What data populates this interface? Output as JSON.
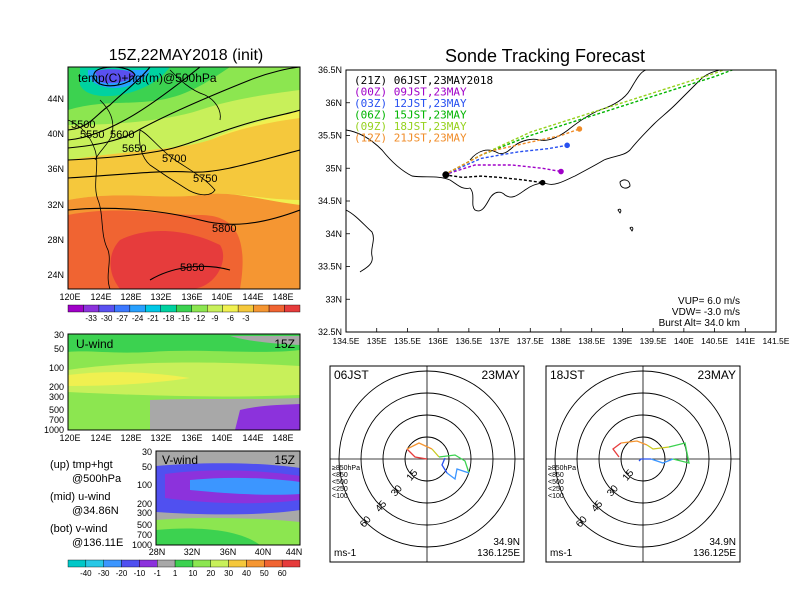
{
  "colors": {
    "temp_scale": [
      "#a000c8",
      "#8c32dc",
      "#5a50f0",
      "#3c78ff",
      "#28a0ff",
      "#00c8e6",
      "#00d2a0",
      "#3cd250",
      "#8ce650",
      "#c8f05a",
      "#f0f050",
      "#f5c83c",
      "#f59632",
      "#f06432",
      "#e63c3c"
    ],
    "wind_scale": [
      "#28c8e6",
      "#3c96ff",
      "#5050f0",
      "#8c32dc",
      "#a8a8a8",
      "#3cd250",
      "#8ce650",
      "#c8f05a",
      "#f5c83c",
      "#f59632",
      "#f06432",
      "#e63c3c"
    ]
  },
  "panel_map": {
    "title": "15Z,22MAY2018 (init)",
    "subtitle": "temp(C)+hgt(m)@500hPa",
    "contour_labels": [
      "5500",
      "5550",
      "5600",
      "5650",
      "5700",
      "5750",
      "5800",
      "5850"
    ],
    "lat_ticks": [
      "44N",
      "40N",
      "36N",
      "32N",
      "28N",
      "24N"
    ],
    "lon_ticks": [
      "120E",
      "124E",
      "128E",
      "132E",
      "136E",
      "140E",
      "144E",
      "148E"
    ],
    "colorbar_labels": [
      "-33",
      "-30",
      "-27",
      "-24",
      "-21",
      "-18",
      "-15",
      "-12",
      "-9",
      "-6",
      "-3"
    ]
  },
  "panel_u": {
    "title": "U-wind",
    "time": "15Z",
    "p_ticks": [
      "30",
      "50",
      "100",
      "200",
      "300",
      "500",
      "700",
      "1000"
    ],
    "lon_ticks": [
      "120E",
      "124E",
      "128E",
      "132E",
      "136E",
      "140E",
      "144E",
      "148E"
    ]
  },
  "panel_v": {
    "title": "V-wind",
    "time": "15Z",
    "p_ticks": [
      "30",
      "50",
      "100",
      "200",
      "300",
      "500",
      "700",
      "1000"
    ],
    "lat_ticks": [
      "28N",
      "32N",
      "36N",
      "40N",
      "44N"
    ],
    "colorbar_labels": [
      "-40",
      "-30",
      "-20",
      "-10",
      "-1",
      "1",
      "10",
      "20",
      "30",
      "40",
      "50",
      "60"
    ]
  },
  "notes": {
    "up1": "(up) tmp+hgt",
    "up2": "@500hPa",
    "mid1": "(mid) u-wind",
    "mid2": "@34.86N",
    "bot1": "(bot) v-wind",
    "bot2": "@136.11E"
  },
  "track": {
    "title": "Sonde Tracking Forecast",
    "legend": [
      {
        "label": "(21Z)  06JST,23MAY2018",
        "color": "#000000"
      },
      {
        "label": "(00Z)  09JST,23MAY",
        "color": "#a000c8"
      },
      {
        "label": "(03Z)  12JST,23MAY",
        "color": "#2850f0"
      },
      {
        "label": "(06Z)  15JST,23MAY",
        "color": "#00b400"
      },
      {
        "label": "(09Z)  18JST,23MAY",
        "color": "#96d21e"
      },
      {
        "label": "(12Z)  21JST,23MAY",
        "color": "#f08c28"
      }
    ],
    "lat_ticks": [
      "36.5N",
      "36N",
      "35.5N",
      "35N",
      "34.5N",
      "34N",
      "33.5N",
      "33N",
      "32.5N"
    ],
    "lon_ticks": [
      "134.5E",
      "135E",
      "135.5E",
      "136E",
      "136.5E",
      "137E",
      "137.5E",
      "138E",
      "138.5E",
      "139E",
      "139.5E",
      "140E",
      "140.5E",
      "141E",
      "141.5E"
    ],
    "vup": "VUP=  6.0  m/s",
    "vdw": "VDW= -3.0  m/s",
    "burst": "Burst Alt=  34.0  km"
  },
  "hodo_left": {
    "time": "06JST",
    "date": "23MAY",
    "ring_labels": [
      "15",
      "30",
      "45",
      "60"
    ],
    "pressure_levels": [
      "≥850hPa",
      "<850",
      "<500",
      "<250",
      "<100"
    ],
    "lat": "34.9N",
    "lon": "136.125E",
    "unit": "ms-1"
  },
  "hodo_right": {
    "time": "18JST",
    "date": "23MAY",
    "ring_labels": [
      "15",
      "30",
      "45",
      "60"
    ],
    "pressure_levels": [
      "≥850hPa",
      "<850",
      "<500",
      "<250",
      "<100"
    ],
    "lat": "34.9N",
    "lon": "136.125E",
    "unit": "ms-1"
  },
  "chart_data": {
    "type": "line",
    "title": "Sonde Tracking Forecast",
    "xlabel": "",
    "ylabel": "",
    "xlim": [
      134.5,
      141.5
    ],
    "ylim": [
      32.5,
      36.5
    ],
    "launch": {
      "x": 136.125,
      "y": 34.9
    },
    "series": [
      {
        "name": "(21Z) 06JST,23MAY2018",
        "x": [
          136.1,
          136.4,
          136.7,
          137.0,
          137.4,
          137.7
        ],
        "y": [
          34.9,
          34.86,
          34.88,
          34.86,
          34.82,
          34.78
        ]
      },
      {
        "name": "(00Z) 09JST,23MAY",
        "x": [
          136.1,
          136.6,
          137.2,
          137.7,
          138.0
        ],
        "y": [
          34.9,
          35.05,
          35.05,
          35.0,
          34.95
        ]
      },
      {
        "name": "(03Z) 12JST,23MAY",
        "x": [
          136.1,
          136.7,
          137.3,
          137.8,
          138.1
        ],
        "y": [
          34.9,
          35.15,
          35.25,
          35.3,
          35.35
        ]
      },
      {
        "name": "(06Z) 15JST,23MAY",
        "x": [
          136.1,
          136.7,
          137.5,
          138.5,
          139.5,
          140.5,
          141.5
        ],
        "y": [
          34.9,
          35.2,
          35.5,
          35.8,
          36.1,
          36.4,
          36.75
        ]
      },
      {
        "name": "(09Z) 18JST,23MAY",
        "x": [
          136.1,
          136.7,
          137.5,
          138.5,
          139.5,
          140.5,
          141.5
        ],
        "y": [
          34.9,
          35.2,
          35.55,
          35.85,
          36.15,
          36.45,
          36.8
        ]
      },
      {
        "name": "(12Z) 21JST,23MAY",
        "x": [
          136.1,
          136.8,
          137.5,
          138.0,
          138.3
        ],
        "y": [
          34.9,
          35.25,
          35.4,
          35.5,
          35.6
        ]
      }
    ]
  }
}
